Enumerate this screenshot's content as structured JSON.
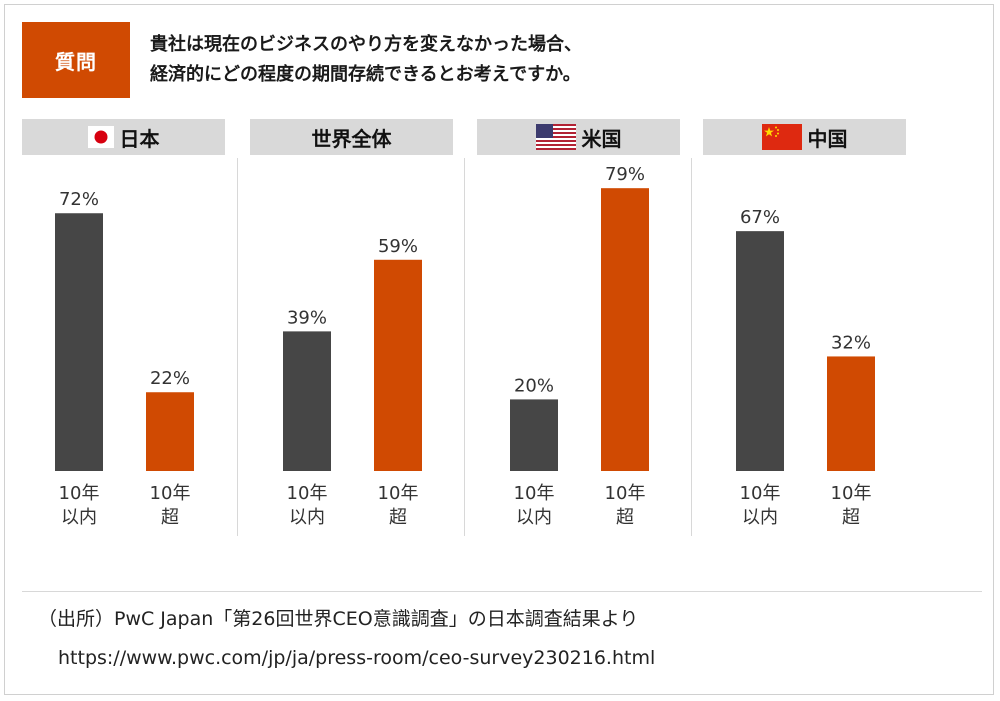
{
  "question": {
    "badge": "質問",
    "line1": "貴社は現在のビジネスのやり方を変えなかった場合、",
    "line2": "経済的にどの程度の期間存続できるとお考えですか。"
  },
  "colors": {
    "accent": "#d04a02",
    "dark": "#464646",
    "header_bg": "#d9d9d9"
  },
  "chart_data": {
    "type": "bar",
    "ylim": [
      0,
      100
    ],
    "categories": [
      "10年\n以内",
      "10年\n超"
    ],
    "groups": [
      {
        "name": "日本",
        "flag": "japan-flag-icon",
        "values": [
          72,
          22
        ],
        "labels": [
          "72%",
          "22%"
        ]
      },
      {
        "name": "世界全体",
        "flag": "",
        "values": [
          39,
          59
        ],
        "labels": [
          "39%",
          "59%"
        ]
      },
      {
        "name": "米国",
        "flag": "usa-flag-icon",
        "values": [
          20,
          79
        ],
        "labels": [
          "20%",
          "79%"
        ]
      },
      {
        "name": "中国",
        "flag": "china-flag-icon",
        "values": [
          67,
          32
        ],
        "labels": [
          "67%",
          "32%"
        ]
      }
    ]
  },
  "source": {
    "line1": "（出所）PwC Japan「第26回世界CEO意識調査」の日本調査結果より",
    "line2": "https://www.pwc.com/jp/ja/press-room/ceo-survey230216.html"
  }
}
